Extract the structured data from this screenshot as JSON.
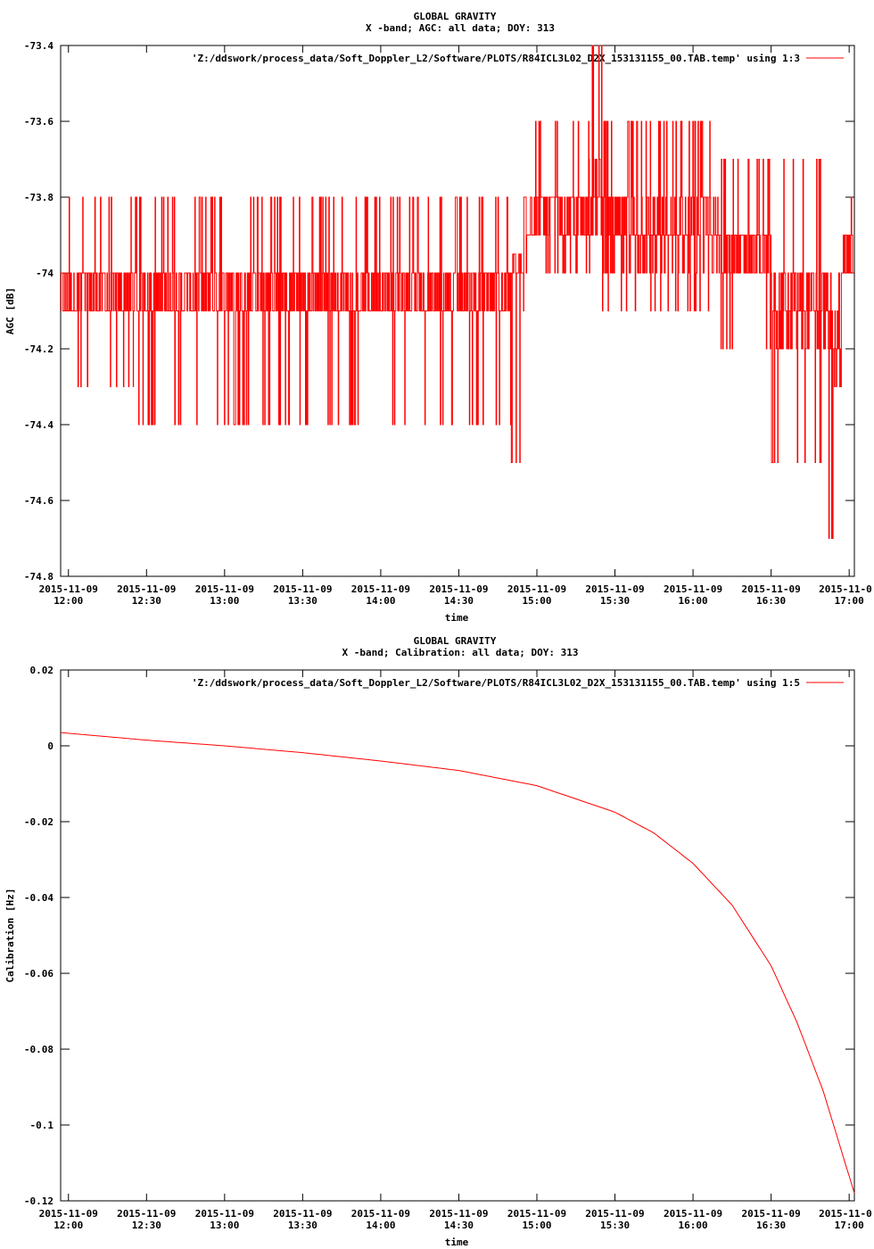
{
  "chart_data": [
    {
      "type": "line",
      "title": "GLOBAL GRAVITY",
      "subtitle": "X -band; AGC: all data; DOY: 313",
      "xlabel": "time",
      "ylabel": "AGC [dB]",
      "ylim": [
        -74.8,
        -73.4
      ],
      "yticks": [
        "-73.4",
        "-73.6",
        "-73.8",
        "-74",
        "-74.2",
        "-74.4",
        "-74.6",
        "-74.8"
      ],
      "ytick_values": [
        -73.4,
        -73.6,
        -73.8,
        -74.0,
        -74.2,
        -74.4,
        -74.6,
        -74.8
      ],
      "xticks": [
        {
          "date": "2015-11-09",
          "time": "12:00"
        },
        {
          "date": "2015-11-09",
          "time": "12:30"
        },
        {
          "date": "2015-11-09",
          "time": "13:00"
        },
        {
          "date": "2015-11-09",
          "time": "13:30"
        },
        {
          "date": "2015-11-09",
          "time": "14:00"
        },
        {
          "date": "2015-11-09",
          "time": "14:30"
        },
        {
          "date": "2015-11-09",
          "time": "15:00"
        },
        {
          "date": "2015-11-09",
          "time": "15:30"
        },
        {
          "date": "2015-11-09",
          "time": "16:00"
        },
        {
          "date": "2015-11-09",
          "time": "16:30"
        },
        {
          "date": "2015-11-0",
          "time": "17:00"
        }
      ],
      "xlim": [
        "2015-11-09 11:57",
        "2015-11-09 17:02"
      ],
      "legend": "'Z:/ddswork/process_data/Soft_Doppler_L2/Software/PLOTS/R84ICL3L02_D2X_153131155_00.TAB.temp' using 1:3",
      "legend_position": "top-right",
      "grid": false,
      "color": "#ff0000",
      "series_segments": [
        {
          "from": "2015-11-09 11:57",
          "to": "2015-11-09 12:25",
          "baseline": -74.05,
          "min": -74.3,
          "max": -73.8
        },
        {
          "from": "2015-11-09 12:25",
          "to": "2015-11-09 14:50",
          "baseline": -74.05,
          "min": -74.4,
          "max": -73.8
        },
        {
          "from": "2015-11-09 14:50",
          "to": "2015-11-09 14:55",
          "baseline": -74.0,
          "min": -74.5,
          "max": -73.95
        },
        {
          "from": "2015-11-09 14:55",
          "to": "2015-11-09 15:20",
          "baseline": -73.85,
          "min": -74.0,
          "max": -73.6
        },
        {
          "from": "2015-11-09 15:20",
          "to": "2015-11-09 15:25",
          "baseline": -73.8,
          "min": -74.0,
          "max": -73.4
        },
        {
          "from": "2015-11-09 15:25",
          "to": "2015-11-09 16:10",
          "baseline": -73.9,
          "min": -74.1,
          "max": -73.6
        },
        {
          "from": "2015-11-09 16:10",
          "to": "2015-11-09 16:30",
          "baseline": -73.95,
          "min": -74.2,
          "max": -73.7
        },
        {
          "from": "2015-11-09 16:30",
          "to": "2015-11-09 16:52",
          "baseline": -74.1,
          "min": -74.5,
          "max": -73.7
        },
        {
          "from": "2015-11-09 16:52",
          "to": "2015-11-09 16:57",
          "baseline": -74.2,
          "min": -74.7,
          "max": -74.0
        },
        {
          "from": "2015-11-09 16:57",
          "to": "2015-11-09 17:02",
          "baseline": -73.95,
          "min": -74.2,
          "max": -73.8
        }
      ]
    },
    {
      "type": "line",
      "title": "GLOBAL GRAVITY",
      "subtitle": "X -band; Calibration: all data; DOY: 313",
      "xlabel": "time",
      "ylabel": "Calibration [Hz]",
      "ylim": [
        -0.12,
        0.02
      ],
      "yticks": [
        "0.02",
        "0",
        "-0.02",
        "-0.04",
        "-0.06",
        "-0.08",
        "-0.1",
        "-0.12"
      ],
      "ytick_values": [
        0.02,
        0.0,
        -0.02,
        -0.04,
        -0.06,
        -0.08,
        -0.1,
        -0.12
      ],
      "xticks": [
        {
          "date": "2015-11-09",
          "time": "12:00"
        },
        {
          "date": "2015-11-09",
          "time": "12:30"
        },
        {
          "date": "2015-11-09",
          "time": "13:00"
        },
        {
          "date": "2015-11-09",
          "time": "13:30"
        },
        {
          "date": "2015-11-09",
          "time": "14:00"
        },
        {
          "date": "2015-11-09",
          "time": "14:30"
        },
        {
          "date": "2015-11-09",
          "time": "15:00"
        },
        {
          "date": "2015-11-09",
          "time": "15:30"
        },
        {
          "date": "2015-11-09",
          "time": "16:00"
        },
        {
          "date": "2015-11-09",
          "time": "16:30"
        },
        {
          "date": "2015-11-0",
          "time": "17:00"
        }
      ],
      "xlim": [
        "2015-11-09 11:57",
        "2015-11-09 17:02"
      ],
      "legend": "'Z:/ddswork/process_data/Soft_Doppler_L2/Software/PLOTS/R84ICL3L02_D2X_153131155_00.TAB.temp' using 1:5",
      "legend_position": "top-right",
      "grid": false,
      "color": "#ff0000",
      "x": [
        "2015-11-09 11:57",
        "2015-11-09 12:30",
        "2015-11-09 13:00",
        "2015-11-09 13:30",
        "2015-11-09 14:00",
        "2015-11-09 14:30",
        "2015-11-09 15:00",
        "2015-11-09 15:30",
        "2015-11-09 15:45",
        "2015-11-09 16:00",
        "2015-11-09 16:15",
        "2015-11-09 16:30",
        "2015-11-09 16:40",
        "2015-11-09 16:50",
        "2015-11-09 17:02"
      ],
      "y": [
        0.0035,
        0.0015,
        0.0,
        -0.0018,
        -0.004,
        -0.0065,
        -0.0105,
        -0.0175,
        -0.023,
        -0.031,
        -0.042,
        -0.058,
        -0.073,
        -0.091,
        -0.118
      ]
    }
  ]
}
